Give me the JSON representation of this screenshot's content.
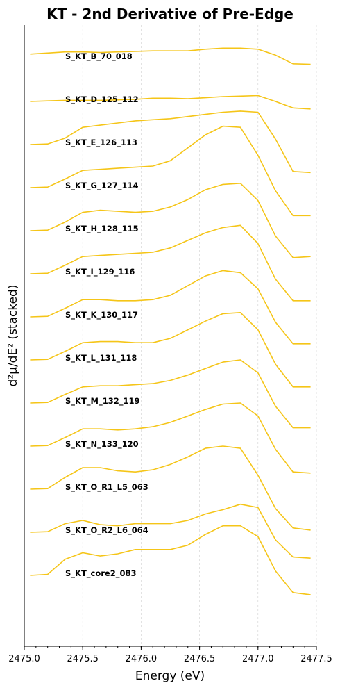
{
  "chart_data": {
    "type": "line",
    "title": "KT - 2nd Derivative of Pre-Edge",
    "xlabel": "Energy (eV)",
    "ylabel": "d²μ/dE² (stacked)",
    "xlim": [
      2475.0,
      2477.5
    ],
    "xticks": [
      "2475.0",
      "2475.5",
      "2476.0",
      "2476.5",
      "2477.0",
      "2477.5"
    ],
    "grid": "x-only",
    "line_color": "#F5C518",
    "x": [
      2475.05,
      2475.2,
      2475.35,
      2475.5,
      2475.65,
      2475.8,
      2475.95,
      2476.1,
      2476.25,
      2476.4,
      2476.55,
      2476.7,
      2476.85,
      2477.0,
      2477.15,
      2477.3,
      2477.45
    ],
    "series": [
      {
        "name": "S_KT_B_70_018",
        "values": [
          0.4,
          0.5,
          0.6,
          0.6,
          0.55,
          0.6,
          0.65,
          0.7,
          0.7,
          0.7,
          0.85,
          0.95,
          0.95,
          0.85,
          0.3,
          -0.5,
          -0.55
        ]
      },
      {
        "name": "S_KT_D_125_112",
        "values": [
          0.0,
          0.05,
          0.1,
          0.1,
          0.1,
          0.15,
          0.2,
          0.3,
          0.3,
          0.25,
          0.35,
          0.45,
          0.5,
          0.55,
          0.0,
          -0.6,
          -0.7
        ]
      },
      {
        "name": "S_KT_E_126_113",
        "values": [
          0.0,
          0.05,
          0.6,
          1.6,
          1.8,
          2.0,
          2.2,
          2.3,
          2.4,
          2.6,
          2.8,
          3.0,
          3.1,
          3.0,
          0.5,
          -2.5,
          -2.6
        ]
      },
      {
        "name": "S_KT_G_127_114",
        "values": [
          0.0,
          0.05,
          0.8,
          1.6,
          1.7,
          1.8,
          1.9,
          2.0,
          2.5,
          3.7,
          4.9,
          5.7,
          5.6,
          3.0,
          -0.3,
          -2.6,
          -2.6
        ]
      },
      {
        "name": "S_KT_H_128_115",
        "values": [
          0.0,
          0.05,
          0.8,
          1.7,
          1.9,
          1.8,
          1.7,
          1.8,
          2.2,
          2.9,
          3.8,
          4.3,
          4.4,
          2.8,
          -0.5,
          -2.5,
          -2.4
        ]
      },
      {
        "name": "S_KT_I_129_116",
        "values": [
          0.0,
          0.05,
          0.8,
          1.6,
          1.7,
          1.8,
          1.9,
          2.0,
          2.4,
          3.1,
          3.8,
          4.3,
          4.5,
          2.8,
          -0.5,
          -2.5,
          -2.5
        ]
      },
      {
        "name": "S_KT_K_130_117",
        "values": [
          0.0,
          0.05,
          0.8,
          1.6,
          1.6,
          1.5,
          1.5,
          1.6,
          2.0,
          2.9,
          3.8,
          4.3,
          4.1,
          2.6,
          -0.5,
          -2.5,
          -2.5
        ]
      },
      {
        "name": "S_KT_L_131_118",
        "values": [
          0.0,
          0.05,
          0.8,
          1.6,
          1.7,
          1.7,
          1.6,
          1.6,
          2.0,
          2.8,
          3.6,
          4.3,
          4.4,
          2.8,
          -0.4,
          -2.5,
          -2.5
        ]
      },
      {
        "name": "S_KT_M_132_119",
        "values": [
          0.0,
          0.05,
          0.8,
          1.5,
          1.6,
          1.6,
          1.7,
          1.8,
          2.1,
          2.6,
          3.2,
          3.8,
          4.0,
          2.8,
          -0.3,
          -2.3,
          -2.3
        ]
      },
      {
        "name": "S_KT_N_133_120",
        "values": [
          0.0,
          0.05,
          0.8,
          1.6,
          1.6,
          1.5,
          1.6,
          1.8,
          2.2,
          2.8,
          3.4,
          3.9,
          4.0,
          2.8,
          -0.3,
          -2.4,
          -2.5
        ]
      },
      {
        "name": "S_KT_O_R1_L5_063",
        "values": [
          0.0,
          0.05,
          1.1,
          2.0,
          2.0,
          1.7,
          1.6,
          1.8,
          2.3,
          3.0,
          3.8,
          4.0,
          3.8,
          1.3,
          -1.8,
          -3.6,
          -3.8
        ]
      },
      {
        "name": "S_KT_O_R2_L6_064",
        "values": [
          0.0,
          0.05,
          0.8,
          1.1,
          0.7,
          0.6,
          0.8,
          0.8,
          0.8,
          1.1,
          1.7,
          2.1,
          2.6,
          2.3,
          -0.7,
          -2.3,
          -2.4
        ]
      },
      {
        "name": "S_KT_core2_083",
        "values": [
          0.0,
          0.1,
          1.5,
          2.1,
          1.8,
          2.0,
          2.4,
          2.4,
          2.4,
          2.8,
          3.8,
          4.6,
          4.6,
          3.6,
          0.4,
          -1.6,
          -1.8
        ]
      }
    ]
  }
}
